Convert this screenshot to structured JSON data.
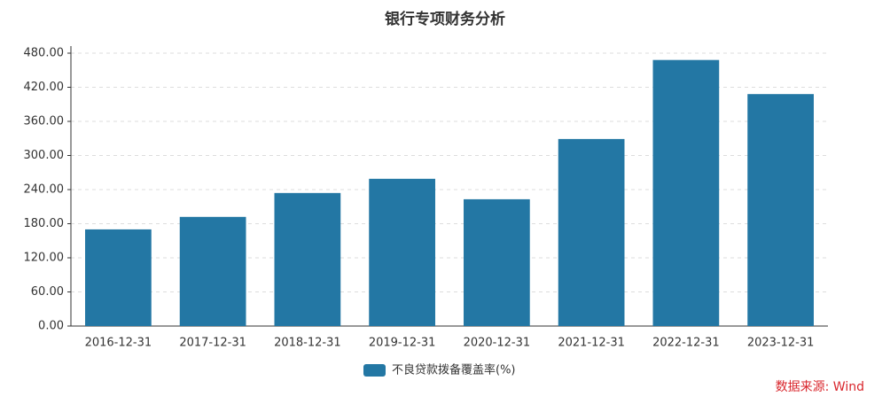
{
  "chart_data": {
    "type": "bar",
    "title": "银行专项财务分析",
    "categories": [
      "2016-12-31",
      "2017-12-31",
      "2018-12-31",
      "2019-12-31",
      "2020-12-31",
      "2021-12-31",
      "2022-12-31",
      "2023-12-31"
    ],
    "series": [
      {
        "name": "不良贷款拨备覆盖率(%)",
        "color": "#2377a4",
        "values": [
          170,
          192,
          234,
          259,
          223,
          329,
          468,
          408
        ]
      }
    ],
    "ylim": [
      0,
      480
    ],
    "yticks": [
      {
        "value": 0,
        "label": "0.00"
      },
      {
        "value": 60,
        "label": "60.00"
      },
      {
        "value": 120,
        "label": "120.00"
      },
      {
        "value": 180,
        "label": "180.00"
      },
      {
        "value": 240,
        "label": "240.00"
      },
      {
        "value": 300,
        "label": "300.00"
      },
      {
        "value": 360,
        "label": "360.00"
      },
      {
        "value": 420,
        "label": "420.00"
      },
      {
        "value": 480,
        "label": "480.00"
      }
    ],
    "grid": true,
    "legend": "bottom",
    "source": "数据来源: Wind"
  }
}
